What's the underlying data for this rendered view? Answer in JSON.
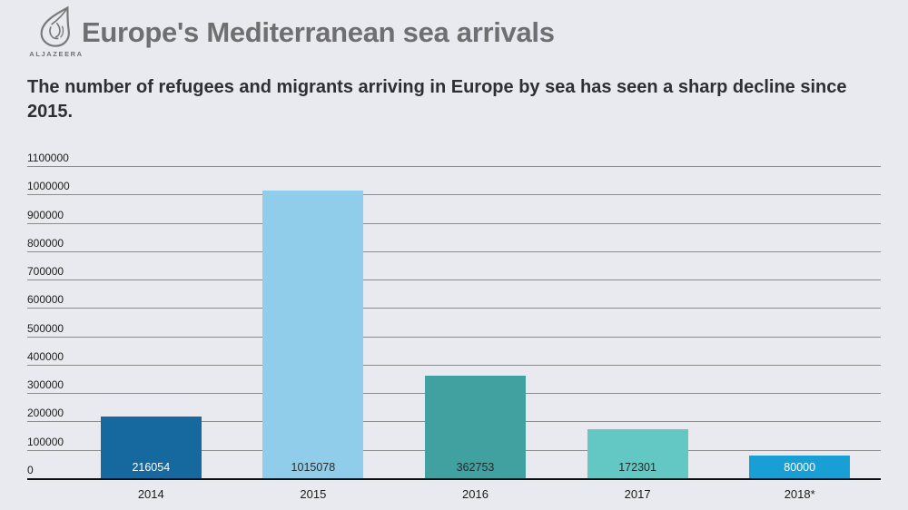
{
  "background": "#e9eaef",
  "header": {
    "logo": {
      "brand": "ALJAZEERA"
    },
    "title": "Europe's Mediterranean sea arrivals",
    "subtitle": "The number of refugees and migrants arriving in Europe by sea has seen a sharp decline since 2015."
  },
  "colors": {
    "title_text": "#6f6f71",
    "subtitle_text": "#2e2e33",
    "gridline": "#8b8b8b",
    "axis": "#0f0f0f",
    "tick_text": "#1c1c1c",
    "logo_gray": "#77787a"
  },
  "chart_data": {
    "type": "bar",
    "title": "Europe's Mediterranean sea arrivals",
    "subtitle": "The number of refugees and migrants arriving in Europe by sea has seen a sharp decline since 2015.",
    "categories": [
      "2014",
      "2015",
      "2016",
      "2017",
      "2018*"
    ],
    "values": [
      216054,
      1015078,
      362753,
      172301,
      80000
    ],
    "value_labels": [
      "216054",
      "1015078",
      "362753",
      "172301",
      "80000"
    ],
    "bar_colors": [
      "#16699f",
      "#90cdeb",
      "#41a1a1",
      "#63c8c3",
      "#189fd6"
    ],
    "value_label_colors": [
      "#ffffff",
      "#2b2b2b",
      "#1d2b2b",
      "#1d2b2b",
      "#ffffff"
    ],
    "xlabel": "",
    "ylabel": "",
    "ylim": [
      0,
      1100000
    ],
    "yticks": [
      0,
      100000,
      200000,
      300000,
      400000,
      500000,
      600000,
      700000,
      800000,
      900000,
      1000000,
      1100000
    ],
    "grid": true,
    "legend": false
  }
}
